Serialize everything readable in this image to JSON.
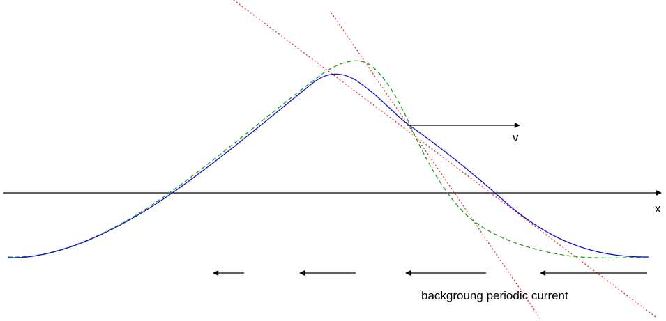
{
  "labels": {
    "x_axis": "x",
    "velocity": "v",
    "current": "backgroung periodic current"
  },
  "colors": {
    "solid_curve": "#1010cc",
    "dashed_curve": "#1a9a1a",
    "tangent_lines": "#e02020",
    "axis": "#000000",
    "arrows": "#000000"
  }
}
